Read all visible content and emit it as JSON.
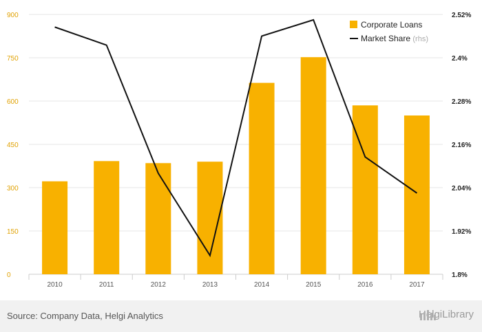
{
  "chart_data": {
    "type": "bar+line",
    "categories": [
      "2010",
      "2011",
      "2012",
      "2013",
      "2014",
      "2015",
      "2016",
      "2017"
    ],
    "series": [
      {
        "name": "Corporate Loans",
        "type": "bar",
        "axis": "left",
        "color": "#f8b100",
        "values": [
          322,
          392,
          385,
          390,
          663,
          752,
          585,
          550
        ]
      },
      {
        "name": "Market Share",
        "suffix": "(rhs)",
        "type": "line",
        "axis": "right",
        "color": "#111111",
        "values": [
          2.485,
          2.435,
          2.08,
          1.852,
          2.46,
          2.505,
          2.125,
          2.025
        ]
      }
    ],
    "left_axis": {
      "range": [
        0,
        900
      ],
      "ticks": [
        0,
        150,
        300,
        450,
        600,
        750,
        900
      ],
      "tick_labels": [
        "0",
        "150",
        "300",
        "450",
        "600",
        "750",
        "900"
      ]
    },
    "right_axis": {
      "range": [
        1.8,
        2.52
      ],
      "ticks": [
        1.8,
        1.92,
        2.04,
        2.16,
        2.28,
        2.4,
        2.52
      ],
      "tick_labels": [
        "1.8%",
        "1.92%",
        "2.04%",
        "2.16%",
        "2.28%",
        "2.4%",
        "2.52%"
      ]
    },
    "grid": true,
    "legend": "top-right"
  },
  "footer": {
    "source": "Source: Company Data, Helgi Analytics",
    "brand": "HelgiLibrary"
  }
}
